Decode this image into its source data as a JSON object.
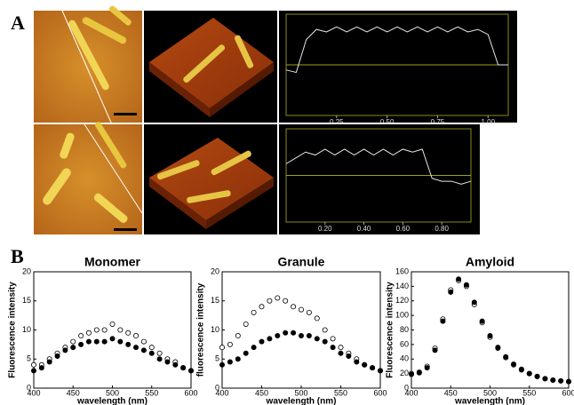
{
  "labels": {
    "a": "A",
    "b": "B"
  },
  "chart_data": [
    {
      "type": "profile",
      "x": [
        0,
        0.05,
        0.1,
        0.15,
        0.2,
        0.25,
        0.3,
        0.35,
        0.4,
        0.45,
        0.5,
        0.55,
        0.6,
        0.65,
        0.7,
        0.75,
        0.8,
        0.85,
        0.9,
        0.95,
        1.0,
        1.05,
        1.1
      ],
      "values": [
        -1,
        -1.5,
        5,
        7,
        6.5,
        7.5,
        6.5,
        7.5,
        6.5,
        7.5,
        6.5,
        7.5,
        6.5,
        7.5,
        6.5,
        7.5,
        6.5,
        7.5,
        6.5,
        7,
        6,
        0,
        0
      ],
      "color": "#e8e8e8",
      "xlim": [
        0,
        1.1
      ],
      "ylim": [
        -10,
        10
      ],
      "xticks": [
        0.25,
        {
          "value": 0.5,
          "label": "0.50"
        },
        0.75,
        {
          "value": 1,
          "label": "1.00"
        }
      ]
    },
    {
      "type": "profile",
      "x": [
        0,
        0.05,
        0.1,
        0.15,
        0.2,
        0.25,
        0.3,
        0.35,
        0.4,
        0.45,
        0.5,
        0.55,
        0.6,
        0.65,
        0.7,
        0.75,
        0.8,
        0.85,
        0.9,
        0.95
      ],
      "values": [
        2,
        3,
        4,
        3.5,
        4.5,
        3.5,
        4.5,
        3.5,
        4.5,
        3.5,
        4.5,
        3.5,
        4.5,
        4,
        4.5,
        -0.5,
        -1,
        -1,
        -1.5,
        -1
      ],
      "color": "#e8e8e8",
      "xlim": [
        0,
        0.95
      ],
      "ylim": [
        -8,
        8
      ],
      "xticks": [
        {
          "value": 0.2,
          "label": "0.20"
        },
        {
          "value": 0.4,
          "label": "0.40"
        },
        {
          "value": 0.6,
          "label": "0.60"
        },
        {
          "value": 0.8,
          "label": "0.80"
        }
      ]
    },
    {
      "type": "scatter",
      "title": "Monomer",
      "ylabel": "Fluorescence intensity",
      "xlabel": "wavelength (nm)",
      "x": [
        400,
        410,
        420,
        430,
        440,
        450,
        460,
        470,
        480,
        490,
        500,
        510,
        520,
        530,
        540,
        550,
        560,
        570,
        580,
        590,
        600
      ],
      "series": [
        {
          "color": "#000000",
          "marker": "open",
          "values": [
            4,
            4,
            5,
            6,
            7,
            8,
            9,
            9.5,
            10,
            10,
            11,
            10,
            9.5,
            9,
            8,
            7,
            6,
            5,
            4.5,
            3.5,
            3
          ]
        },
        {
          "color": "#000000",
          "marker": "filled",
          "values": [
            3,
            3.5,
            4.5,
            5.5,
            6.5,
            7,
            7.5,
            8,
            8,
            8,
            8.5,
            8,
            7.5,
            7,
            6.5,
            6,
            5,
            4.5,
            4,
            3.5,
            3
          ]
        }
      ],
      "xlim": [
        400,
        600
      ],
      "xticks": [
        400,
        450,
        500,
        550,
        600
      ],
      "ylim": [
        0,
        20
      ],
      "yticks": [
        0,
        5,
        10,
        15,
        20
      ]
    },
    {
      "type": "scatter",
      "title": "Granule",
      "ylabel": "fluorescence intensity",
      "xlabel": "wavelength (nm)",
      "x": [
        400,
        410,
        420,
        430,
        440,
        450,
        460,
        470,
        480,
        490,
        500,
        510,
        520,
        530,
        540,
        550,
        560,
        570,
        580,
        590,
        600
      ],
      "series": [
        {
          "color": "#000000",
          "marker": "open",
          "values": [
            7,
            7.5,
            9,
            11,
            13,
            14,
            15,
            15.5,
            15,
            14,
            13.5,
            13,
            12,
            10,
            8.5,
            7,
            6,
            5,
            4,
            3.5,
            3
          ]
        },
        {
          "color": "#000000",
          "marker": "filled",
          "values": [
            4,
            4.5,
            5,
            6,
            7,
            8,
            8.5,
            9,
            9.5,
            9.5,
            9,
            9,
            8.5,
            8,
            7,
            6,
            5.5,
            4.5,
            4,
            3.5,
            3
          ]
        }
      ],
      "xlim": [
        400,
        600
      ],
      "xticks": [
        400,
        450,
        500,
        550,
        600
      ],
      "ylim": [
        0,
        20
      ],
      "yticks": [
        0,
        5,
        10,
        15,
        20
      ]
    },
    {
      "type": "scatter",
      "title": "Amyloid",
      "ylabel": "Fluorescence intensity",
      "xlabel": "wavelength (nm)",
      "x": [
        400,
        410,
        420,
        430,
        440,
        450,
        460,
        470,
        480,
        490,
        500,
        510,
        520,
        530,
        540,
        550,
        560,
        570,
        580,
        590,
        600
      ],
      "series": [
        {
          "color": "#000000",
          "marker": "open",
          "values": [
            20,
            22,
            30,
            55,
            95,
            135,
            148,
            140,
            115,
            90,
            70,
            55,
            42,
            32,
            25,
            20,
            16,
            13,
            11,
            10,
            9
          ]
        },
        {
          "color": "#000000",
          "marker": "filled",
          "values": [
            19,
            21,
            28,
            52,
            92,
            132,
            150,
            142,
            118,
            92,
            72,
            56,
            43,
            33,
            26,
            20,
            16,
            13,
            11,
            10,
            9
          ]
        }
      ],
      "xlim": [
        400,
        600
      ],
      "xticks": [
        400,
        450,
        500,
        550,
        600
      ],
      "ylim": [
        0,
        160
      ],
      "yticks": [
        0,
        20,
        40,
        60,
        80,
        100,
        120,
        140,
        160
      ]
    }
  ]
}
